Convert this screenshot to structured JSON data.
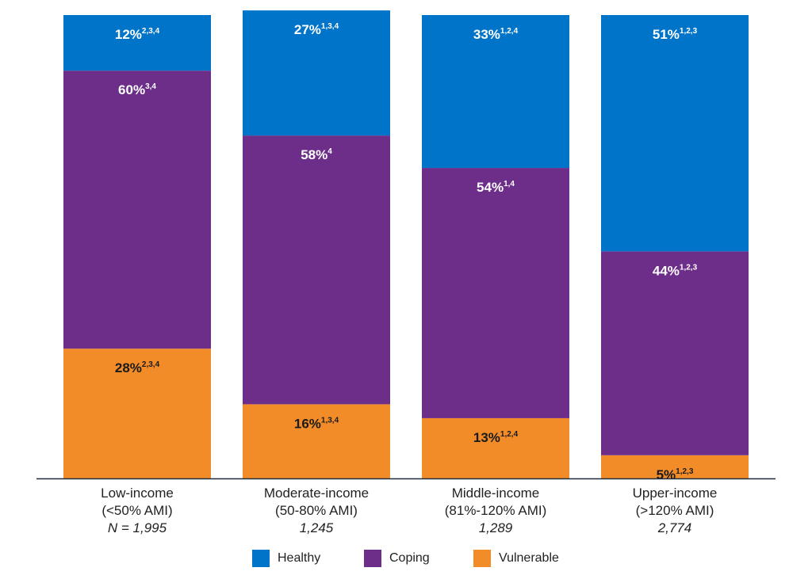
{
  "chart_data": {
    "type": "bar",
    "stacked": true,
    "orientation": "vertical",
    "ylim": [
      0,
      100
    ],
    "grid": false,
    "legend_position": "bottom",
    "categories": [
      {
        "line1": "Low-income",
        "line2": "(<50% AMI)",
        "line3": "N = 1,995"
      },
      {
        "line1": "Moderate-income",
        "line2": "(50-80% AMI)",
        "line3": "1,245"
      },
      {
        "line1": "Middle-income",
        "line2": "(81%-120% AMI)",
        "line3": "1,289"
      },
      {
        "line1": "Upper-income",
        "line2": "(>120% AMI)",
        "line3": "2,774"
      }
    ],
    "series": [
      {
        "name": "Vulnerable",
        "color": "#F28C28",
        "label_color": "#1a1a1a",
        "values": [
          28,
          16,
          13,
          5
        ],
        "labels": [
          "28%",
          "16%",
          "13%",
          "5%"
        ],
        "superscripts": [
          "2,3,4",
          "1,3,4",
          "1,2,4",
          "1,2,3"
        ]
      },
      {
        "name": "Coping",
        "color": "#6D2E8A",
        "label_color": "#ffffff",
        "values": [
          60,
          58,
          54,
          44
        ],
        "labels": [
          "60%",
          "58%",
          "54%",
          "44%"
        ],
        "superscripts": [
          "3,4",
          "4",
          "1,4",
          "1,2,3"
        ]
      },
      {
        "name": "Healthy",
        "color": "#0074C8",
        "label_color": "#ffffff",
        "values": [
          12,
          27,
          33,
          51
        ],
        "labels": [
          "12%",
          "27%",
          "33%",
          "51%"
        ],
        "superscripts": [
          "2,3,4",
          "1,3,4",
          "1,2,4",
          "1,2,3"
        ]
      }
    ]
  },
  "legend": {
    "items": [
      {
        "label": "Healthy",
        "color": "#0074C8"
      },
      {
        "label": "Coping",
        "color": "#6D2E8A"
      },
      {
        "label": "Vulnerable",
        "color": "#F28C28"
      }
    ]
  }
}
